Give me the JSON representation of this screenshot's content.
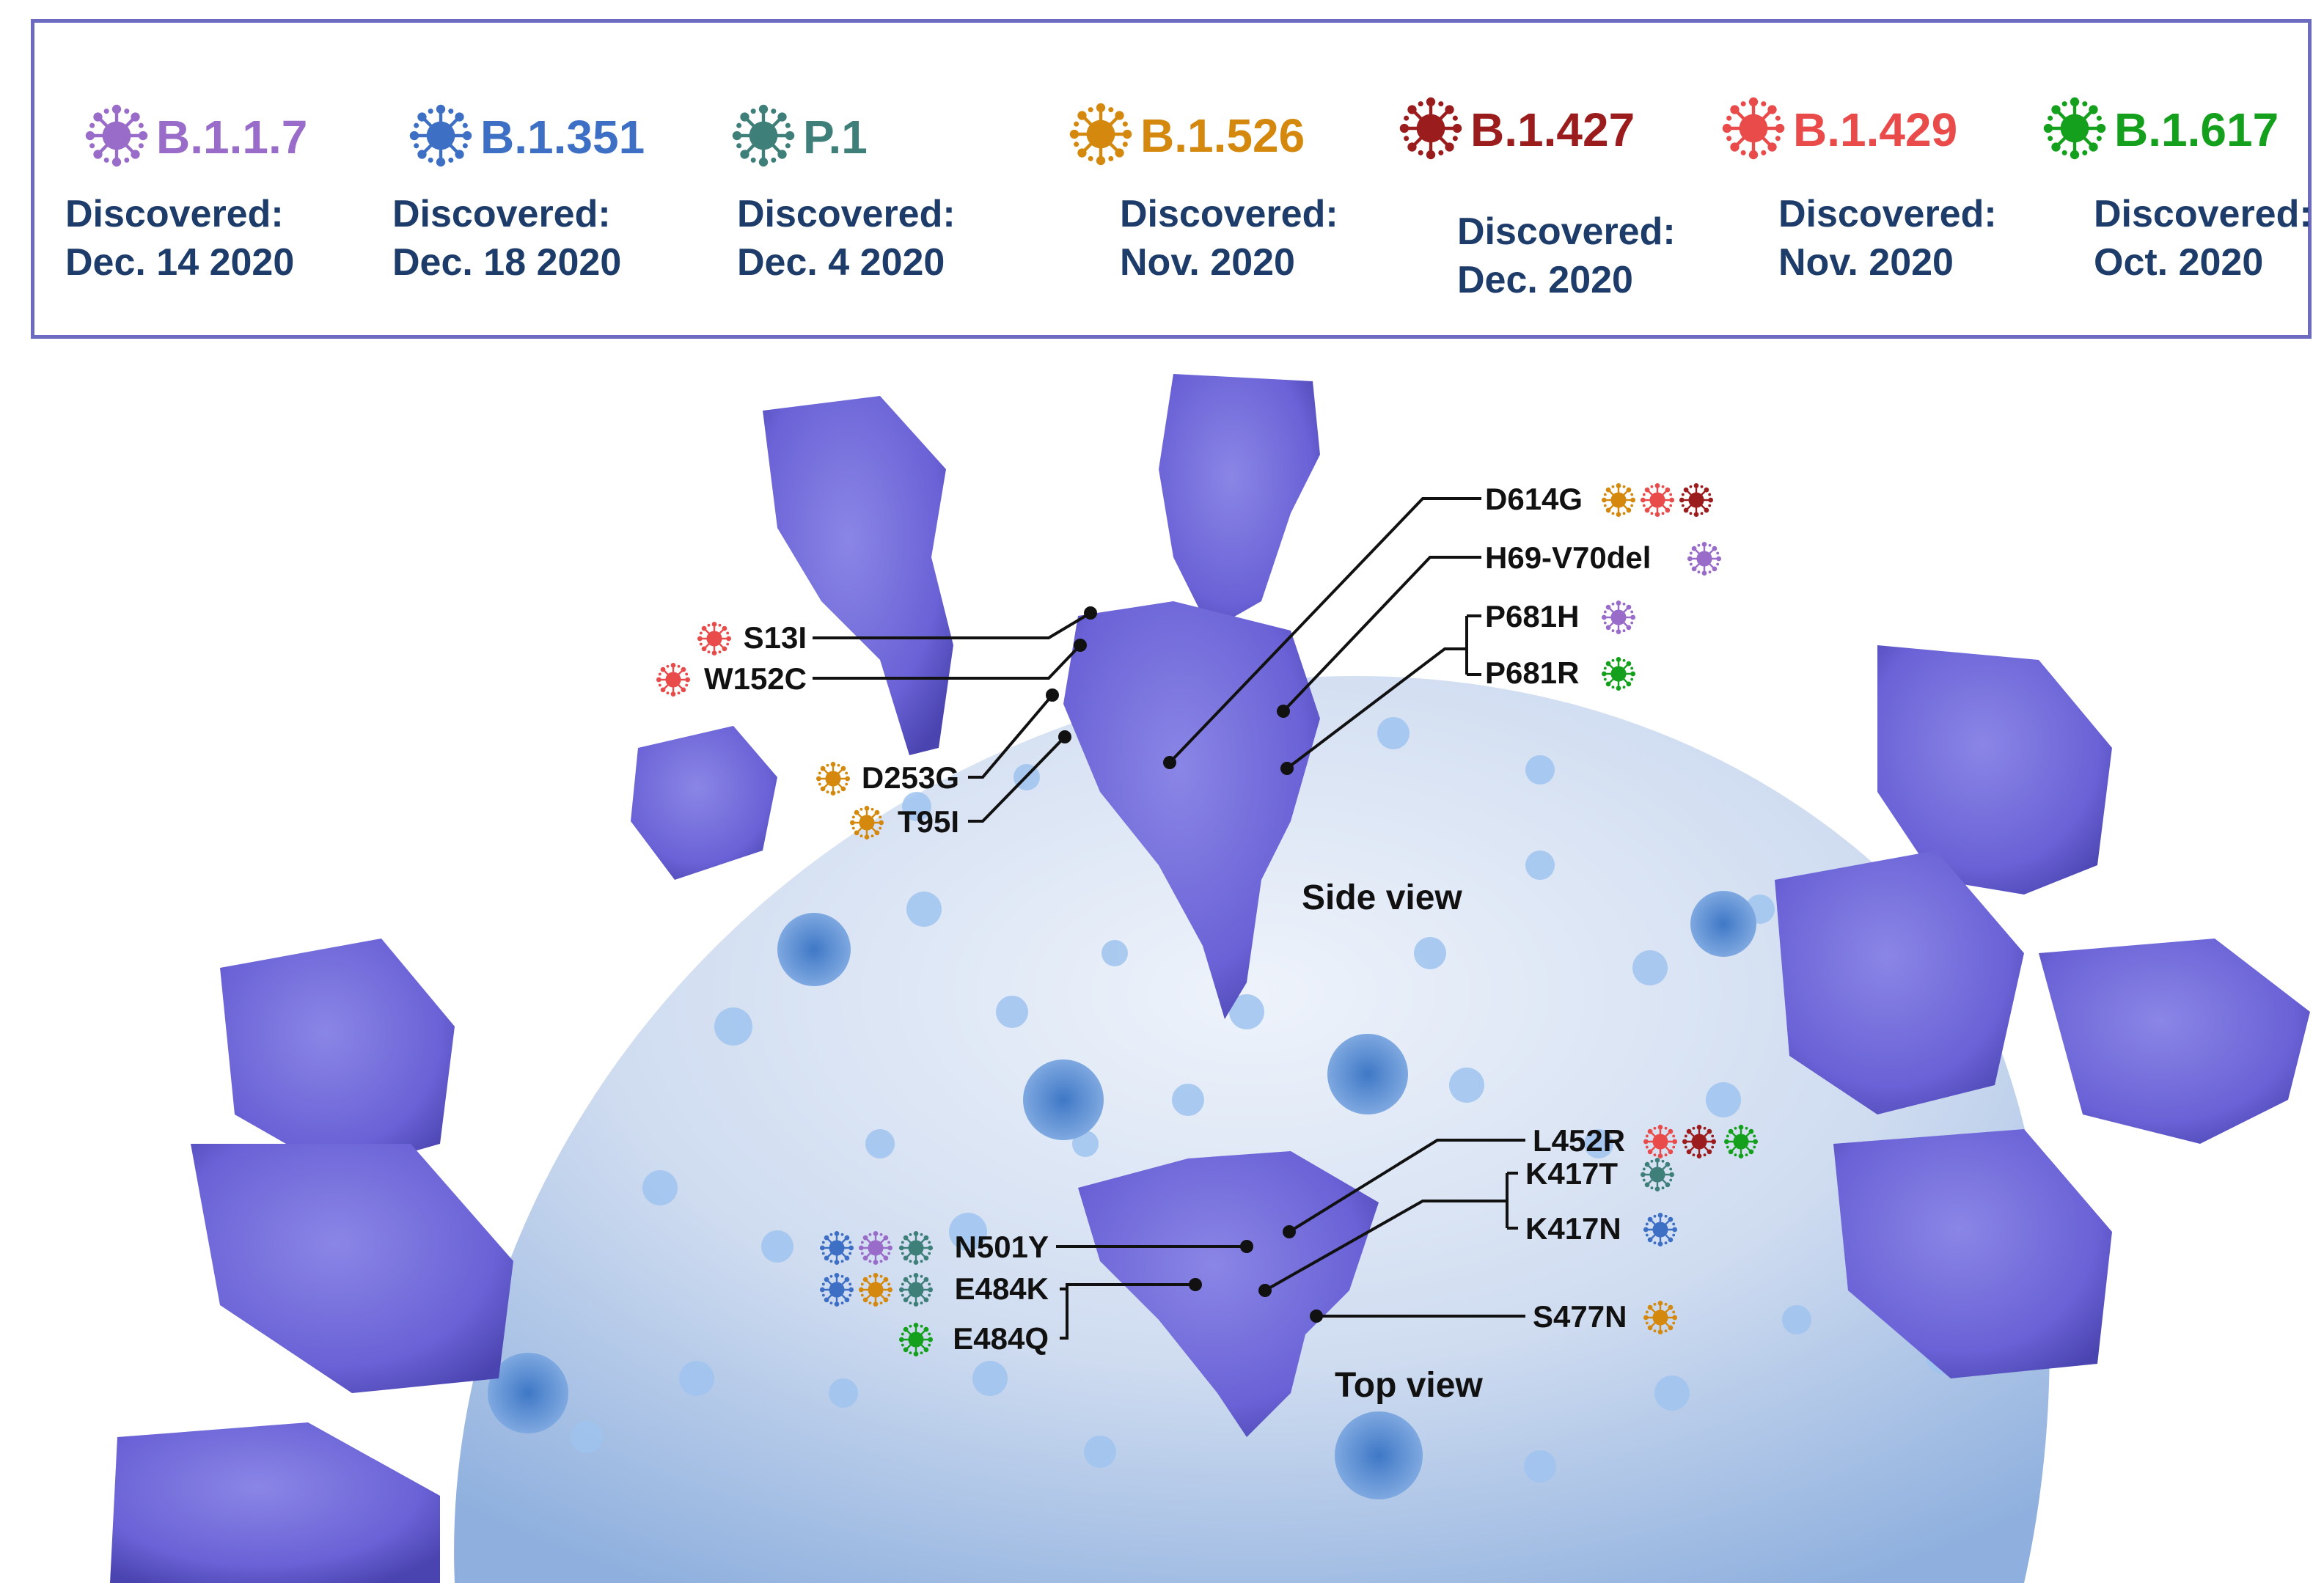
{
  "legend": {
    "variants": [
      {
        "name": "B.1.1.7",
        "color": "#9a6cc9",
        "discovered_label": "Discovered:",
        "discovered_date": "Dec. 14 2020"
      },
      {
        "name": "B.1.351",
        "color": "#3d6fc4",
        "discovered_label": "Discovered:",
        "discovered_date": "Dec. 18 2020"
      },
      {
        "name": "P.1",
        "color": "#3e7f79",
        "discovered_label": "Discovered:",
        "discovered_date": "Dec. 4 2020"
      },
      {
        "name": "B.1.526",
        "color": "#d4890e",
        "discovered_label": "Discovered:",
        "discovered_date": "Nov. 2020"
      },
      {
        "name": "B.1.427",
        "color": "#9b1c1c",
        "discovered_label": "Discovered:",
        "discovered_date": "Dec. 2020"
      },
      {
        "name": "B.1.429",
        "color": "#e94b4b",
        "discovered_label": "Discovered:",
        "discovered_date": "Nov. 2020"
      },
      {
        "name": "B.1.617",
        "color": "#14a01c",
        "discovered_label": "Discovered:",
        "discovered_date": "Oct. 2020"
      }
    ]
  },
  "views": {
    "side": "Side view",
    "top": "Top view"
  },
  "mutations": {
    "d614g": {
      "label": "D614G",
      "variants": [
        "B.1.526",
        "B.1.429",
        "B.1.427"
      ]
    },
    "h69_v70del": {
      "label": "H69-V70del",
      "variants": [
        "B.1.1.7"
      ]
    },
    "p681h": {
      "label": "P681H",
      "variants": [
        "B.1.1.7"
      ]
    },
    "p681r": {
      "label": "P681R",
      "variants": [
        "B.1.617"
      ]
    },
    "s13i": {
      "label": "S13I",
      "variants": [
        "B.1.429"
      ]
    },
    "w152c": {
      "label": "W152C",
      "variants": [
        "B.1.429"
      ]
    },
    "d253g": {
      "label": "D253G",
      "variants": [
        "B.1.526"
      ]
    },
    "t95i": {
      "label": "T95I",
      "variants": [
        "B.1.526"
      ]
    },
    "l452r": {
      "label": "L452R",
      "variants": [
        "B.1.429",
        "B.1.427",
        "B.1.617"
      ]
    },
    "k417t": {
      "label": "K417T",
      "variants": [
        "P.1"
      ]
    },
    "k417n": {
      "label": "K417N",
      "variants": [
        "B.1.351"
      ]
    },
    "s477n": {
      "label": "S477N",
      "variants": [
        "B.1.526"
      ]
    },
    "n501y": {
      "label": "N501Y",
      "variants": [
        "B.1.351",
        "B.1.1.7",
        "P.1"
      ]
    },
    "e484k": {
      "label": "E484K",
      "variants": [
        "B.1.351",
        "B.1.526",
        "P.1"
      ]
    },
    "e484q": {
      "label": "E484Q",
      "variants": [
        "B.1.617"
      ]
    }
  }
}
